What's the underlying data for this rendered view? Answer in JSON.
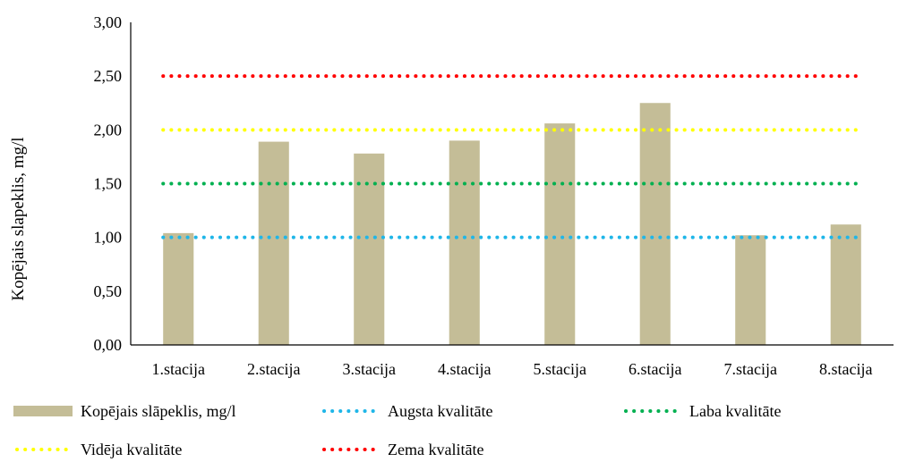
{
  "chart_data": {
    "type": "bar",
    "title": "",
    "xlabel": "",
    "ylabel": "Kopējais slapeklis, mg/l",
    "ylim": [
      0,
      3
    ],
    "yticks": [
      "0,00",
      "0,50",
      "1,00",
      "1,50",
      "2,00",
      "2,50",
      "3,00"
    ],
    "grid": false,
    "legend_position": "bottom",
    "categories": [
      "1.stacija",
      "2.stacija",
      "3.stacija",
      "4.stacija",
      "5.stacija",
      "6.stacija",
      "7.stacija",
      "8.stacija"
    ],
    "bar_series": {
      "name": "Kopējais slāpeklis, mg/l",
      "color": "#c4bd97",
      "values": [
        1.04,
        1.89,
        1.78,
        1.9,
        2.06,
        2.25,
        1.02,
        1.12
      ]
    },
    "threshold_series": [
      {
        "name": "Augsta kvalitāte",
        "color": "#1fb6e8",
        "value": 1.0
      },
      {
        "name": "Laba kvalitāte",
        "color": "#00b050",
        "value": 1.5
      },
      {
        "name": "Vidēja kvalitāte",
        "color": "#ffff00",
        "value": 2.0
      },
      {
        "name": "Zema kvalitāte",
        "color": "#ff0000",
        "value": 2.5
      }
    ]
  }
}
